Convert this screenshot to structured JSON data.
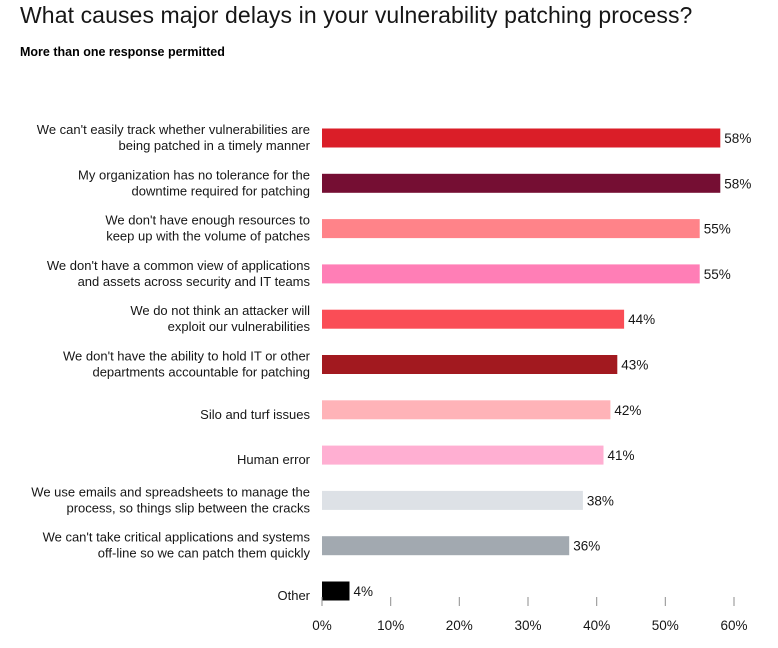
{
  "header": {
    "title": "What causes major delays in your vulnerability patching process?",
    "subtitle": "More than one response permitted"
  },
  "chart_data": {
    "type": "bar",
    "orientation": "horizontal",
    "title": "What causes major delays in your vulnerability patching process?",
    "subtitle": "More than one response permitted",
    "xlabel": "",
    "ylabel": "",
    "xlim": [
      0,
      60
    ],
    "xticks": [
      "0%",
      "10%",
      "20%",
      "30%",
      "40%",
      "50%",
      "60%"
    ],
    "xtick_values": [
      0,
      10,
      20,
      30,
      40,
      50,
      60
    ],
    "grid": false,
    "categories": [
      [
        "We can't easily track whether vulnerabilities are",
        "being patched in a timely manner"
      ],
      [
        "My organization has no tolerance for the",
        "downtime required for patching"
      ],
      [
        "We don't have enough resources to",
        "keep up with the volume of patches"
      ],
      [
        "We don't have a common view of applications",
        "and assets across security and IT teams"
      ],
      [
        "We do not think an attacker will",
        "exploit our vulnerabilities"
      ],
      [
        "We don't have the ability to hold IT or other",
        "departments accountable for patching"
      ],
      [
        "Silo and turf issues"
      ],
      [
        "Human error"
      ],
      [
        "We use emails and spreadsheets to manage the",
        "process, so things slip between the cracks"
      ],
      [
        "We can't take critical applications and systems",
        "off-line so we can patch them quickly"
      ],
      [
        "Other"
      ]
    ],
    "values": [
      58,
      58,
      55,
      55,
      44,
      43,
      42,
      41,
      38,
      36,
      4
    ],
    "value_labels": [
      "58%",
      "58%",
      "55%",
      "55%",
      "44%",
      "43%",
      "42%",
      "41%",
      "38%",
      "36%",
      "4%"
    ],
    "colors": [
      "#da1e28",
      "#750e33",
      "#ff8389",
      "#ff7eb6",
      "#fa4d56",
      "#a2191f",
      "#ffb3b8",
      "#ffafd2",
      "#dde1e6",
      "#a2a9b0",
      "#000000"
    ]
  }
}
